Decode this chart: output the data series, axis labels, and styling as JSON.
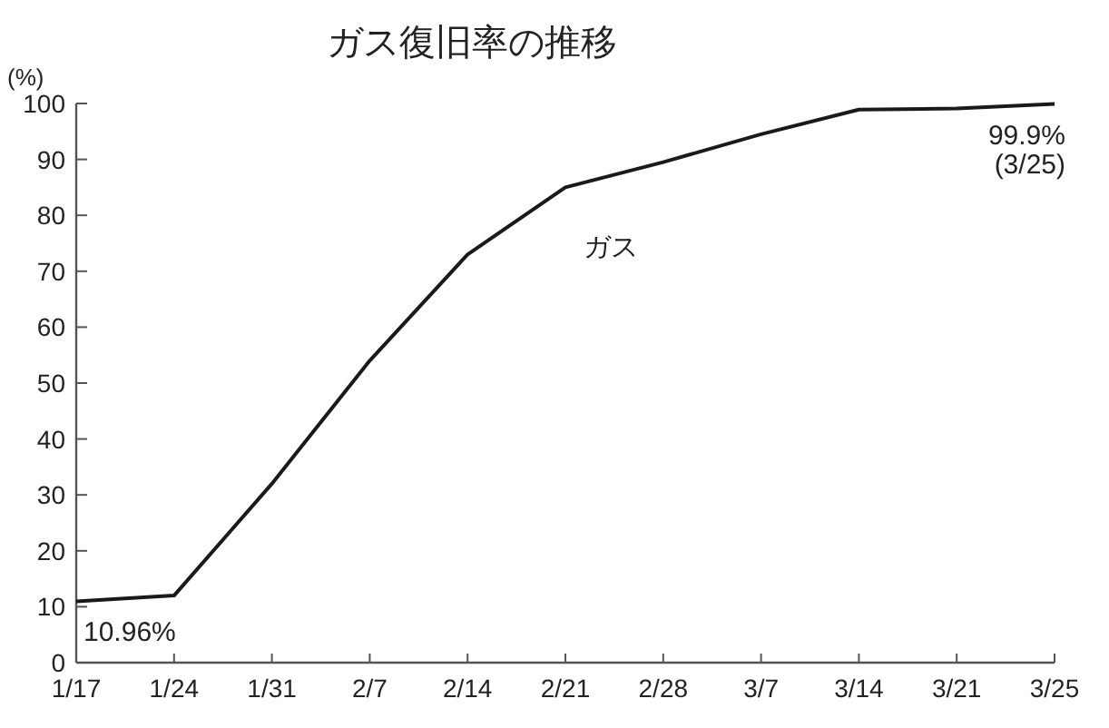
{
  "chart_data": {
    "type": "line",
    "title": "ガス復旧率の推移",
    "ylabel": "(%)",
    "categories": [
      "1/17",
      "1/24",
      "1/31",
      "2/7",
      "2/14",
      "2/21",
      "2/28",
      "3/7",
      "3/14",
      "3/21",
      "3/25"
    ],
    "series": [
      {
        "name": "ガス",
        "color": "#1a1a1a",
        "values": [
          10.96,
          12,
          32,
          54,
          73,
          85,
          89.5,
          94.5,
          98.9,
          99.1,
          99.9
        ]
      }
    ],
    "ylim": [
      0,
      100
    ],
    "yticks": [
      0,
      10,
      20,
      30,
      40,
      50,
      60,
      70,
      80,
      90,
      100
    ],
    "annotations": [
      {
        "text": "10.96%",
        "x": "1/17",
        "y": 10.96
      },
      {
        "text": "99.9%\n(3/25)",
        "x": "3/25",
        "y": 99.9
      }
    ],
    "grid": false,
    "legend": false
  }
}
